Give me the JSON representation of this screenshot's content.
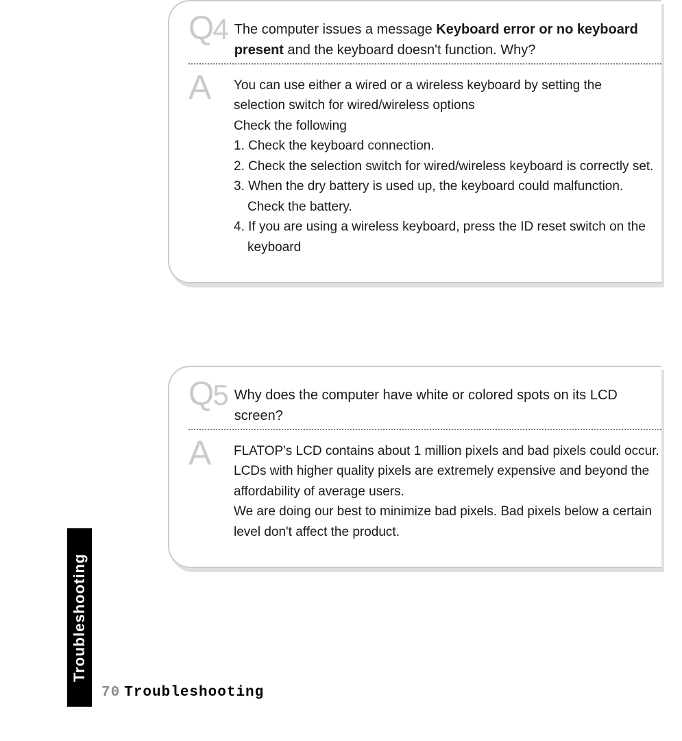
{
  "sideTab": "Troubleshooting",
  "footer": {
    "pageNumber": "70",
    "title": "Troubleshooting"
  },
  "colors": {
    "boxBorder": "#c9cccd",
    "markGray": "#c7cbcd",
    "dotted": "#7d7f80",
    "text": "#1a1a1a",
    "bg": "#ffffff",
    "sideTabBg": "#000000",
    "sideTabText": "#ffffff"
  },
  "qa": [
    {
      "qLabel": "Q",
      "qNum": "4",
      "question_pre": "The computer issues a message ",
      "question_bold": "Keyboard error or no keyboard present",
      "question_post": " and the keyboard doesn't  function. Why?",
      "aLabel": "A",
      "answer_lines": [
        "You can use either a wired or a wireless keyboard by setting the",
        "selection switch for wired/wireless options",
        "Check the following",
        "1. Check the keyboard connection.",
        "2. Check the selection switch for wired/wireless keyboard is correctly set.",
        "3. When the dry battery is used up, the keyboard could malfunction.",
        "    Check the battery.",
        "4. If you are using a wireless keyboard, press the ID reset switch on the",
        "    keyboard"
      ]
    },
    {
      "qLabel": "Q",
      "qNum": "5",
      "question_pre": "Why does the computer have white or colored spots on its LCD screen?",
      "question_bold": "",
      "question_post": "",
      "aLabel": "A",
      "answer_lines": [
        "FLATOP's LCD contains about 1 million pixels and bad pixels could occur.",
        "LCDs with higher quality pixels are extremely expensive and beyond the",
        "affordability of average users.",
        "We are doing our best to minimize bad pixels. Bad pixels below a certain",
        "level don't affect the product."
      ]
    }
  ]
}
